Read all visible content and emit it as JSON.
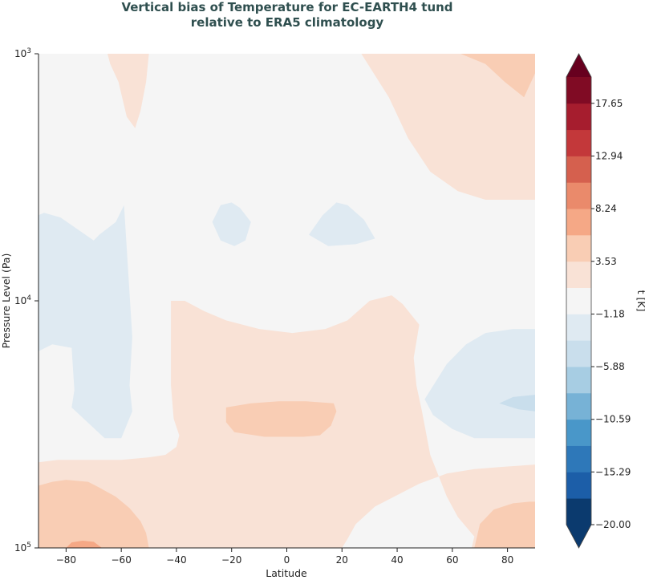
{
  "chart_data": {
    "type": "heatmap",
    "title_line1": "Vertical bias of Temperature for EC-EARTH4 tund",
    "title_line2": "relative to ERA5 climatology",
    "xlabel": "Latitude",
    "ylabel": "Pressure Level (Pa)",
    "xlim": [
      -90,
      90
    ],
    "xticks": [
      -80,
      -60,
      -40,
      -20,
      0,
      20,
      40,
      60,
      80
    ],
    "ylim_pa": [
      1000,
      100000
    ],
    "y_scale": "log",
    "yticks": [
      {
        "value": 1000,
        "base": "10",
        "exp": "3"
      },
      {
        "value": 10000,
        "base": "10",
        "exp": "4"
      },
      {
        "value": 100000,
        "base": "10",
        "exp": "5"
      }
    ],
    "colorbar": {
      "label": "t [K]",
      "ticks": [
        "17.65",
        "12.94",
        "8.24",
        "3.53",
        "−1.18",
        "−5.88",
        "−10.59",
        "−15.29",
        "−20.00"
      ],
      "levels": [
        -20.0,
        -17.65,
        -15.29,
        -12.94,
        -10.59,
        -8.24,
        -5.88,
        -3.53,
        -1.18,
        1.18,
        3.53,
        5.88,
        8.24,
        10.59,
        12.94,
        15.29,
        17.65,
        20.0
      ],
      "colors_low_to_high": [
        "#0b3a6e",
        "#1c5ea8",
        "#2e78b9",
        "#4997c9",
        "#77b2d6",
        "#a7cde3",
        "#c9deec",
        "#dfeaf2",
        "#f5f5f5",
        "#f9e2d6",
        "#f9cdb4",
        "#f5a886",
        "#ea8a6b",
        "#d5604e",
        "#c3383a",
        "#a61d2e",
        "#800b24"
      ],
      "under_color": "#0b3a6e",
      "over_color": "#67001f"
    },
    "background_level_color": "#f5f5f5",
    "regions": [
      {
        "name": "warm-bias-upper-sh",
        "level": "1.18 to 3.53",
        "points": [
          [
            -65,
            1000
          ],
          [
            -50,
            1000
          ],
          [
            -51,
            1300
          ],
          [
            -53,
            1700
          ],
          [
            -55,
            2000
          ],
          [
            -58,
            1800
          ],
          [
            -61,
            1300
          ],
          [
            -64,
            1100
          ]
        ]
      },
      {
        "name": "warm-bias-upper-nh",
        "level": "1.18 to 3.53",
        "points": [
          [
            27,
            1000
          ],
          [
            90,
            1000
          ],
          [
            90,
            3900
          ],
          [
            72,
            3900
          ],
          [
            62,
            3600
          ],
          [
            52,
            3000
          ],
          [
            44,
            2200
          ],
          [
            37,
            1500
          ]
        ]
      },
      {
        "name": "warm-bias-upper-nh-pole",
        "level": "3.53 to 5.88",
        "points": [
          [
            63,
            1000
          ],
          [
            90,
            1000
          ],
          [
            90,
            1200
          ],
          [
            86,
            1500
          ],
          [
            79,
            1300
          ],
          [
            72,
            1100
          ]
        ]
      },
      {
        "name": "cool-bias-sh-strat",
        "level": "-3.53 to -1.18",
        "points": [
          [
            -90,
            16000
          ],
          [
            -85,
            15000
          ],
          [
            -78,
            15500
          ],
          [
            -77,
            23000
          ],
          [
            -78,
            27000
          ],
          [
            -66,
            36000
          ],
          [
            -60,
            36000
          ],
          [
            -56,
            28000
          ],
          [
            -57,
            22000
          ],
          [
            -56,
            14000
          ],
          [
            -59,
            4100
          ],
          [
            -62,
            4800
          ],
          [
            -68,
            5400
          ],
          [
            -70,
            5700
          ],
          [
            -82,
            4600
          ],
          [
            -88,
            4400
          ],
          [
            -90,
            4500
          ]
        ]
      },
      {
        "name": "cool-bias-small",
        "level": "-3.53 to -1.18",
        "points": [
          [
            -27,
            4800
          ],
          [
            -24,
            4100
          ],
          [
            -20,
            4000
          ],
          [
            -17,
            4200
          ],
          [
            -13,
            4800
          ],
          [
            -15,
            5700
          ],
          [
            -19,
            6000
          ],
          [
            -24,
            5700
          ]
        ]
      },
      {
        "name": "cool-bias-tropics-upper",
        "level": "-3.53 to -1.18",
        "points": [
          [
            8,
            5400
          ],
          [
            13,
            4500
          ],
          [
            18,
            4000
          ],
          [
            22,
            4100
          ],
          [
            28,
            4700
          ],
          [
            32,
            5600
          ],
          [
            25,
            5900
          ],
          [
            15,
            6000
          ]
        ]
      },
      {
        "name": "cool-bias-nh-lower",
        "level": "-3.53 to -1.18",
        "points": [
          [
            50,
            25000
          ],
          [
            58,
            18000
          ],
          [
            65,
            15000
          ],
          [
            72,
            13500
          ],
          [
            82,
            13000
          ],
          [
            90,
            13000
          ],
          [
            90,
            36000
          ],
          [
            80,
            36000
          ],
          [
            68,
            36000
          ],
          [
            60,
            33000
          ],
          [
            53,
            29000
          ]
        ]
      },
      {
        "name": "cool-bias-nh-lower-core",
        "level": "-5.88 to -3.53",
        "points": [
          [
            77,
            26000
          ],
          [
            82,
            24500
          ],
          [
            90,
            24000
          ],
          [
            90,
            28000
          ],
          [
            84,
            27500
          ]
        ]
      },
      {
        "name": "warm-bias-tropical-trop",
        "level": "1.18 to 3.53",
        "points": [
          [
            -90,
            45000
          ],
          [
            -90,
            100000
          ],
          [
            20,
            100000
          ],
          [
            22,
            92000
          ],
          [
            25,
            80000
          ],
          [
            32,
            68000
          ],
          [
            48,
            55000
          ],
          [
            58,
            50000
          ],
          [
            68,
            48000
          ],
          [
            78,
            47000
          ],
          [
            90,
            46000
          ],
          [
            90,
            100000
          ],
          [
            67,
            100000
          ],
          [
            68,
            90000
          ],
          [
            62,
            75000
          ],
          [
            58,
            62000
          ],
          [
            52,
            42000
          ],
          [
            49,
            28000
          ],
          [
            47,
            22000
          ],
          [
            46,
            17000
          ],
          [
            48,
            12500
          ],
          [
            42,
            10300
          ],
          [
            38,
            9500
          ],
          [
            30,
            10000
          ],
          [
            22,
            12000
          ],
          [
            14,
            13000
          ],
          [
            2,
            13500
          ],
          [
            -10,
            13000
          ],
          [
            -22,
            12000
          ],
          [
            -30,
            11000
          ],
          [
            -37,
            10000
          ],
          [
            -42,
            10000
          ],
          [
            -42,
            15000
          ],
          [
            -42,
            22000
          ],
          [
            -41,
            30000
          ],
          [
            -39,
            35000
          ],
          [
            -40,
            39000
          ],
          [
            -44,
            42000
          ],
          [
            -50,
            43000
          ],
          [
            -60,
            44000
          ],
          [
            -72,
            44000
          ],
          [
            -83,
            44000
          ]
        ]
      },
      {
        "name": "warm-bias-midtrop-core",
        "level": "3.53 to 5.88",
        "points": [
          [
            -22,
            27000
          ],
          [
            -13,
            26000
          ],
          [
            -3,
            25500
          ],
          [
            7,
            25500
          ],
          [
            17,
            26000
          ],
          [
            18,
            28000
          ],
          [
            16,
            32000
          ],
          [
            12,
            35000
          ],
          [
            6,
            35500
          ],
          [
            -8,
            35500
          ],
          [
            -19,
            34000
          ],
          [
            -22,
            31000
          ]
        ]
      },
      {
        "name": "warm-bias-sh-surface",
        "level": "3.53 to 5.88",
        "points": [
          [
            -90,
            56000
          ],
          [
            -85,
            54000
          ],
          [
            -80,
            53000
          ],
          [
            -72,
            54000
          ],
          [
            -68,
            57000
          ],
          [
            -62,
            62000
          ],
          [
            -57,
            69000
          ],
          [
            -53,
            78000
          ],
          [
            -51,
            87000
          ],
          [
            -50,
            100000
          ],
          [
            -90,
            100000
          ]
        ]
      },
      {
        "name": "warm-bias-sh-surface-core",
        "level": "5.88 to 8.24",
        "points": [
          [
            -80,
            100000
          ],
          [
            -78,
            95000
          ],
          [
            -74,
            93500
          ],
          [
            -70,
            94500
          ],
          [
            -67,
            100000
          ]
        ]
      },
      {
        "name": "warm-bias-nh-surface",
        "level": "3.53 to 5.88",
        "points": [
          [
            68,
            100000
          ],
          [
            70,
            80000
          ],
          [
            75,
            70000
          ],
          [
            82,
            66000
          ],
          [
            88,
            65000
          ],
          [
            90,
            65000
          ],
          [
            90,
            100000
          ]
        ]
      }
    ]
  }
}
